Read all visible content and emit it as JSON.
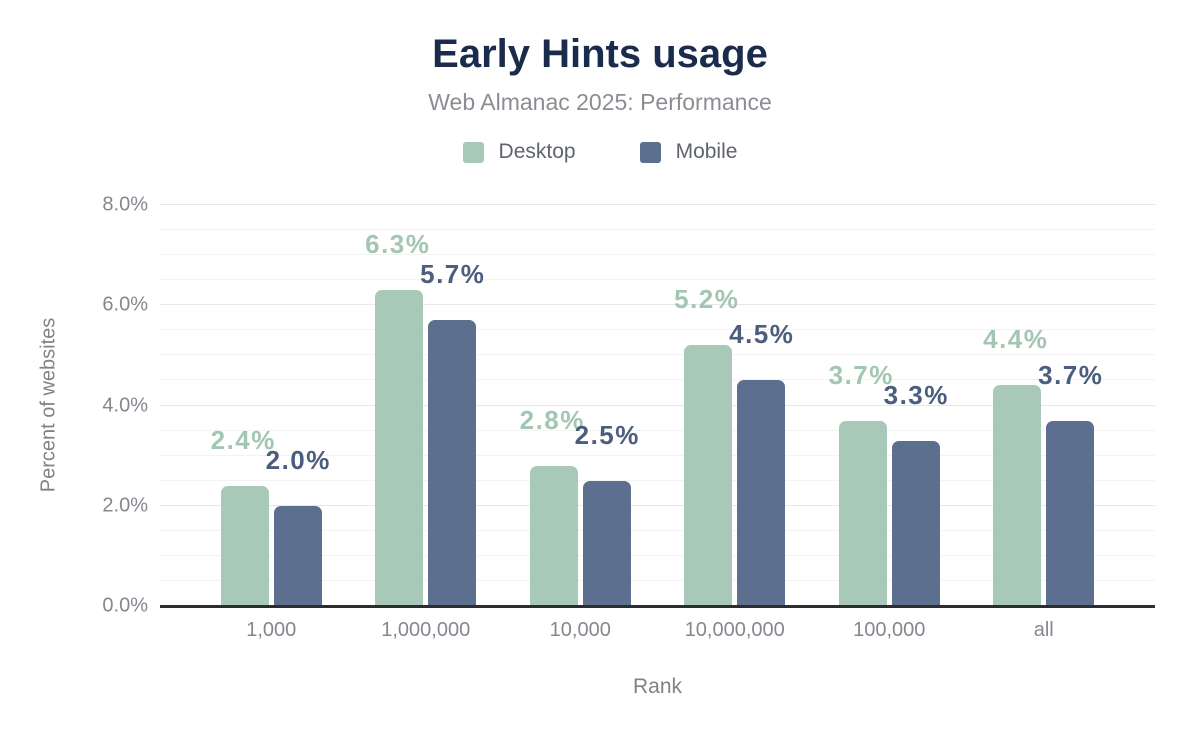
{
  "chart_data": {
    "type": "bar",
    "title": "Early Hints usage",
    "subtitle": "Web Almanac 2025: Performance",
    "xlabel": "Rank",
    "ylabel": "Percent of websites",
    "categories": [
      "1,000",
      "1,000,000",
      "10,000",
      "10,000,000",
      "100,000",
      "all"
    ],
    "series": [
      {
        "name": "Desktop",
        "color": "#a8c9b8",
        "label_color": "#a3c6b3",
        "values": [
          2.4,
          6.3,
          2.8,
          5.2,
          3.7,
          4.4
        ],
        "labels": [
          "2.4%",
          "6.3%",
          "2.8%",
          "5.2%",
          "3.7%",
          "4.4%"
        ]
      },
      {
        "name": "Mobile",
        "color": "#5d6f8e",
        "label_color": "#4c5e7e",
        "values": [
          2.0,
          5.7,
          2.5,
          4.5,
          3.3,
          3.7
        ],
        "labels": [
          "2.0%",
          "5.7%",
          "2.5%",
          "4.5%",
          "3.3%",
          "3.7%"
        ]
      }
    ],
    "ylim": [
      0,
      8
    ],
    "yticks": [
      {
        "value": 0,
        "label": "0.0%"
      },
      {
        "value": 2,
        "label": "2.0%"
      },
      {
        "value": 4,
        "label": "4.0%"
      },
      {
        "value": 6,
        "label": "6.0%"
      },
      {
        "value": 8,
        "label": "8.0%"
      }
    ],
    "grid": {
      "minor_step": 0.5,
      "major_step": 2,
      "visible": true
    },
    "legend_position": "top"
  }
}
